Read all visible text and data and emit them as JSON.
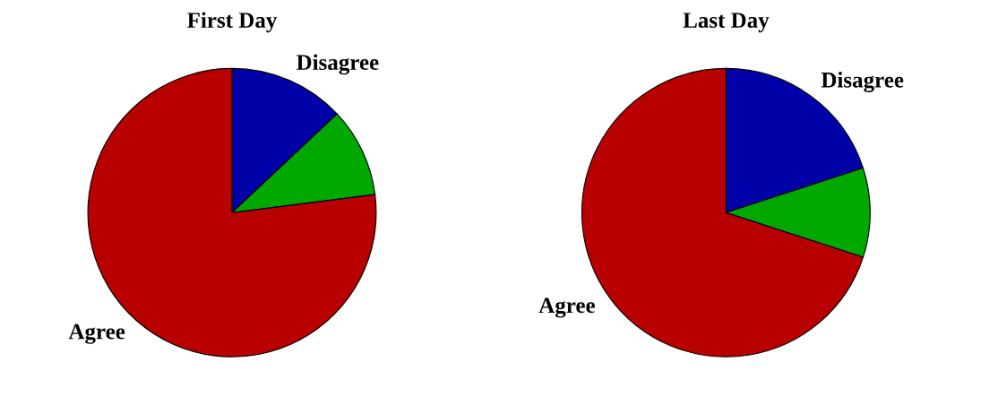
{
  "chart_data": [
    {
      "type": "pie",
      "title": "First Day",
      "categories": [
        "Disagree",
        null,
        "Agree"
      ],
      "values": [
        13,
        10,
        77
      ],
      "colors": [
        "#0000a8",
        "#00a800",
        "#b80000"
      ]
    },
    {
      "type": "pie",
      "title": "Last Day",
      "categories": [
        "Disagree",
        null,
        "Agree"
      ],
      "values": [
        20,
        10,
        70
      ],
      "colors": [
        "#0000a8",
        "#00a800",
        "#b80000"
      ]
    }
  ]
}
